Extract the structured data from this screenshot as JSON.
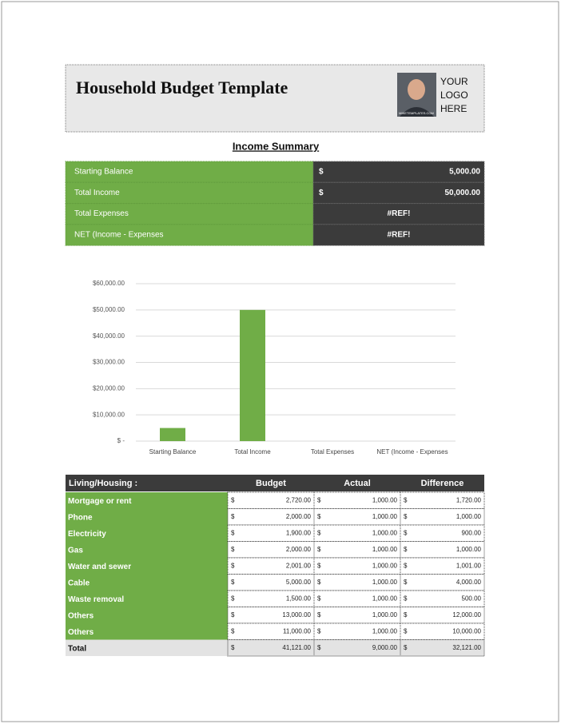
{
  "header": {
    "title": "Household Budget Template",
    "logo_text": [
      "YOUR",
      "LOGO",
      "HERE"
    ],
    "logo_caption": "MIKETEMPLATES.COM"
  },
  "income_summary": {
    "title": "Income Summary",
    "rows": [
      {
        "label": "Starting Balance",
        "currency": "$",
        "amount": "5,000.00"
      },
      {
        "label": "Total Income",
        "currency": "$",
        "amount": "50,000.00"
      },
      {
        "label": "Total Expenses",
        "amount": "#REF!"
      },
      {
        "label": "NET (Income - Expenses",
        "amount": "#REF!"
      }
    ]
  },
  "chart_data": {
    "type": "bar",
    "categories": [
      "Starting Balance",
      "Total Income",
      "Total Expenses",
      "NET (Income - Expenses"
    ],
    "values": [
      5000,
      50000,
      null,
      null
    ],
    "color": "#70ad47",
    "ylim": [
      0,
      60000
    ],
    "yticks": [
      {
        "value": 0,
        "label": "$ -"
      },
      {
        "value": 10000,
        "label": "$10,000.00"
      },
      {
        "value": 20000,
        "label": "$20,000.00"
      },
      {
        "value": 30000,
        "label": "$30,000.00"
      },
      {
        "value": 40000,
        "label": "$40,000.00"
      },
      {
        "value": 50000,
        "label": "$50,000.00"
      },
      {
        "value": 60000,
        "label": "$60,000.00"
      }
    ],
    "grid": true
  },
  "housing": {
    "columns": [
      "Living/Housing :",
      "Budget",
      "Actual",
      "Difference"
    ],
    "currency": "$",
    "rows": [
      [
        "Mortgage or rent",
        "2,720.00",
        "1,000.00",
        "1,720.00"
      ],
      [
        "Phone",
        "2,000.00",
        "1,000.00",
        "1,000.00"
      ],
      [
        "Electricity",
        "1,900.00",
        "1,000.00",
        "900.00"
      ],
      [
        "Gas",
        "2,000.00",
        "1,000.00",
        "1,000.00"
      ],
      [
        "Water and sewer",
        "2,001.00",
        "1,000.00",
        "1,001.00"
      ],
      [
        "Cable",
        "5,000.00",
        "1,000.00",
        "4,000.00"
      ],
      [
        "Waste removal",
        "1,500.00",
        "1,000.00",
        "500.00"
      ],
      [
        "Others",
        "13,000.00",
        "1,000.00",
        "12,000.00"
      ],
      [
        "Others",
        "11,000.00",
        "1,000.00",
        "10,000.00"
      ]
    ],
    "total": [
      "Total",
      "41,121.00",
      "9,000.00",
      "32,121.00"
    ]
  }
}
